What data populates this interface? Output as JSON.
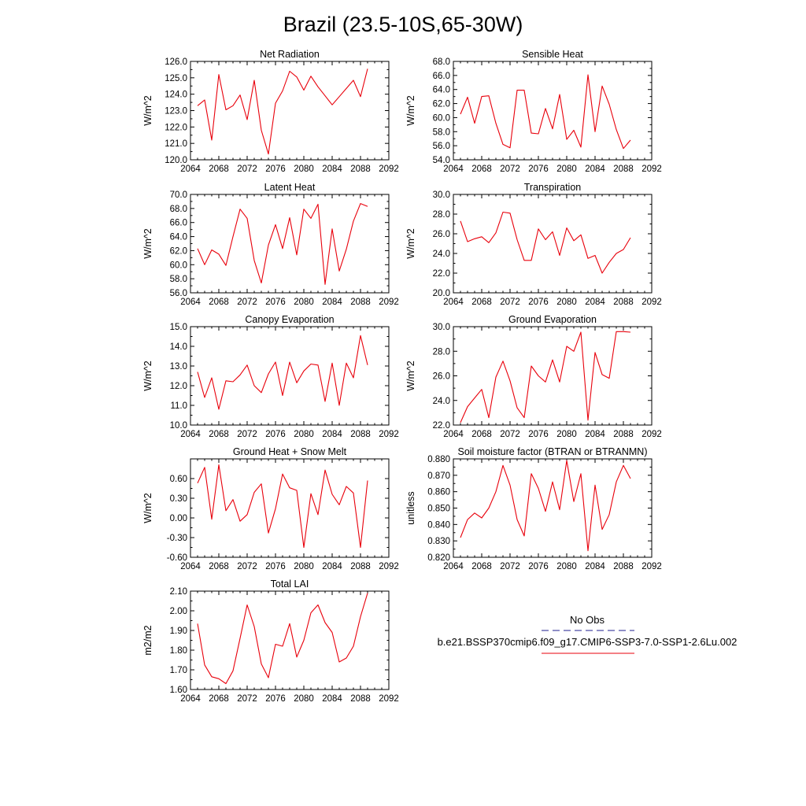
{
  "page": {
    "title": "Brazil (23.5-10S,65-30W)"
  },
  "legend": {
    "entries": [
      {
        "label": "No Obs",
        "color": "#1f1f8f",
        "style": "dashed"
      },
      {
        "label": "b.e21.BSSP370cmip6.f09_g17.CMIP6-SSP3-7.0-SSP1-2.6Lu.002",
        "color": "#e8000b",
        "style": "solid"
      }
    ]
  },
  "colors": {
    "series": "#e8000b",
    "frame": "#000000"
  },
  "chart_data": [
    {
      "type": "line",
      "title": "Net Radiation",
      "ylabel": "W/m^2",
      "xlim": [
        2064,
        2092
      ],
      "ylim": [
        120,
        126
      ],
      "xticks": [
        "2064",
        "2068",
        "2072",
        "2076",
        "2080",
        "2084",
        "2088",
        "2092"
      ],
      "yticks": [
        "120.0",
        "121.0",
        "122.0",
        "123.0",
        "124.0",
        "125.0",
        "126.0"
      ],
      "x": [
        2065,
        2066,
        2067,
        2068,
        2069,
        2070,
        2071,
        2072,
        2073,
        2074,
        2075,
        2076,
        2077,
        2078,
        2079,
        2080,
        2081,
        2082,
        2083,
        2084,
        2085,
        2086,
        2087,
        2088,
        2089
      ],
      "y": [
        123.3,
        123.65,
        121.2,
        125.2,
        123.05,
        123.3,
        123.95,
        122.45,
        124.85,
        121.8,
        120.35,
        123.45,
        124.2,
        125.4,
        125.05,
        124.25,
        125.1,
        124.45,
        123.9,
        123.35,
        123.85,
        124.35,
        124.85,
        123.85,
        125.55
      ]
    },
    {
      "type": "line",
      "title": "Sensible Heat",
      "ylabel": "W/m^2",
      "xlim": [
        2064,
        2092
      ],
      "ylim": [
        54,
        68
      ],
      "xticks": [
        "2064",
        "2068",
        "2072",
        "2076",
        "2080",
        "2084",
        "2088",
        "2092"
      ],
      "yticks": [
        "54.0",
        "56.0",
        "58.0",
        "60.0",
        "62.0",
        "64.0",
        "66.0",
        "68.0"
      ],
      "x": [
        2065,
        2066,
        2067,
        2068,
        2069,
        2070,
        2071,
        2072,
        2073,
        2074,
        2075,
        2076,
        2077,
        2078,
        2079,
        2080,
        2081,
        2082,
        2083,
        2084,
        2085,
        2086,
        2087,
        2088,
        2089
      ],
      "y": [
        60.5,
        62.9,
        59.2,
        63.0,
        63.1,
        59.2,
        56.2,
        55.7,
        63.9,
        63.9,
        57.8,
        57.7,
        61.3,
        58.4,
        63.3,
        56.9,
        58.2,
        55.8,
        66.1,
        58.0,
        64.5,
        61.9,
        58.3,
        55.6,
        56.8
      ]
    },
    {
      "type": "line",
      "title": "Latent Heat",
      "ylabel": "W/m^2",
      "xlim": [
        2064,
        2092
      ],
      "ylim": [
        56,
        70
      ],
      "xticks": [
        "2064",
        "2068",
        "2072",
        "2076",
        "2080",
        "2084",
        "2088",
        "2092"
      ],
      "yticks": [
        "56.0",
        "58.0",
        "60.0",
        "62.0",
        "64.0",
        "66.0",
        "68.0",
        "70.0"
      ],
      "x": [
        2065,
        2066,
        2067,
        2068,
        2069,
        2070,
        2071,
        2072,
        2073,
        2074,
        2075,
        2076,
        2077,
        2078,
        2079,
        2080,
        2081,
        2082,
        2083,
        2084,
        2085,
        2086,
        2087,
        2088,
        2089
      ],
      "y": [
        62.3,
        60.0,
        62.1,
        61.5,
        59.9,
        64.0,
        67.9,
        66.6,
        60.6,
        57.4,
        62.8,
        65.7,
        62.3,
        66.7,
        61.4,
        67.9,
        66.6,
        68.6,
        57.2,
        65.1,
        59.1,
        62.2,
        66.2,
        68.7,
        68.3
      ]
    },
    {
      "type": "line",
      "title": "Transpiration",
      "ylabel": "W/m^2",
      "xlim": [
        2064,
        2092
      ],
      "ylim": [
        20,
        30
      ],
      "xticks": [
        "2064",
        "2068",
        "2072",
        "2076",
        "2080",
        "2084",
        "2088",
        "2092"
      ],
      "yticks": [
        "20.0",
        "22.0",
        "24.0",
        "26.0",
        "28.0",
        "30.0"
      ],
      "x": [
        2065,
        2066,
        2067,
        2068,
        2069,
        2070,
        2071,
        2072,
        2073,
        2074,
        2075,
        2076,
        2077,
        2078,
        2079,
        2080,
        2081,
        2082,
        2083,
        2084,
        2085,
        2086,
        2087,
        2088,
        2089
      ],
      "y": [
        27.3,
        25.2,
        25.5,
        25.7,
        25.1,
        26.1,
        28.2,
        28.1,
        25.4,
        23.3,
        23.3,
        26.5,
        25.4,
        26.2,
        23.8,
        26.6,
        25.3,
        25.9,
        23.5,
        23.8,
        22.0,
        23.1,
        24.0,
        24.4,
        25.6
      ]
    },
    {
      "type": "line",
      "title": "Canopy Evaporation",
      "ylabel": "W/m^2",
      "xlim": [
        2064,
        2092
      ],
      "ylim": [
        10,
        15
      ],
      "xticks": [
        "2064",
        "2068",
        "2072",
        "2076",
        "2080",
        "2084",
        "2088",
        "2092"
      ],
      "yticks": [
        "10.0",
        "11.0",
        "12.0",
        "13.0",
        "14.0",
        "15.0"
      ],
      "x": [
        2065,
        2066,
        2067,
        2068,
        2069,
        2070,
        2071,
        2072,
        2073,
        2074,
        2075,
        2076,
        2077,
        2078,
        2079,
        2080,
        2081,
        2082,
        2083,
        2084,
        2085,
        2086,
        2087,
        2088,
        2089
      ],
      "y": [
        12.7,
        11.4,
        12.4,
        10.8,
        12.25,
        12.2,
        12.55,
        13.05,
        12.0,
        11.65,
        12.6,
        13.2,
        11.5,
        13.2,
        12.15,
        12.75,
        13.1,
        13.05,
        11.2,
        13.15,
        11.0,
        13.15,
        12.4,
        14.55,
        13.05
      ]
    },
    {
      "type": "line",
      "title": "Ground Evaporation",
      "ylabel": "W/m^2",
      "xlim": [
        2064,
        2092
      ],
      "ylim": [
        22,
        30
      ],
      "xticks": [
        "2064",
        "2068",
        "2072",
        "2076",
        "2080",
        "2084",
        "2088",
        "2092"
      ],
      "yticks": [
        "22.0",
        "24.0",
        "26.0",
        "28.0",
        "30.0"
      ],
      "x": [
        2065,
        2066,
        2067,
        2068,
        2069,
        2070,
        2071,
        2072,
        2073,
        2074,
        2075,
        2076,
        2077,
        2078,
        2079,
        2080,
        2081,
        2082,
        2083,
        2084,
        2085,
        2086,
        2087,
        2088,
        2089
      ],
      "y": [
        22.2,
        23.5,
        24.2,
        24.9,
        22.6,
        25.9,
        27.2,
        25.6,
        23.4,
        22.6,
        26.8,
        26.0,
        25.5,
        27.3,
        25.5,
        28.4,
        28.0,
        29.55,
        22.4,
        27.9,
        26.1,
        25.8,
        29.6,
        29.6,
        29.55
      ]
    },
    {
      "type": "line",
      "title": "Ground Heat + Snow Melt",
      "ylabel": "W/m^2",
      "xlim": [
        2064,
        2092
      ],
      "ylim": [
        -0.6,
        0.9
      ],
      "xticks": [
        "2064",
        "2068",
        "2072",
        "2076",
        "2080",
        "2084",
        "2088",
        "2092"
      ],
      "yticks": [
        "-0.60",
        "-0.30",
        "0.00",
        "0.30",
        "0.60"
      ],
      "x": [
        2065,
        2066,
        2067,
        2068,
        2069,
        2070,
        2071,
        2072,
        2073,
        2074,
        2075,
        2076,
        2077,
        2078,
        2079,
        2080,
        2081,
        2082,
        2083,
        2084,
        2085,
        2086,
        2087,
        2088,
        2089
      ],
      "y": [
        0.53,
        0.77,
        -0.02,
        0.81,
        0.11,
        0.28,
        -0.05,
        0.05,
        0.39,
        0.52,
        -0.23,
        0.14,
        0.67,
        0.46,
        0.42,
        -0.45,
        0.37,
        0.05,
        0.73,
        0.36,
        0.2,
        0.48,
        0.38,
        -0.45,
        0.57
      ]
    },
    {
      "type": "line",
      "title": "Soil moisture factor (BTRAN or BTRANMN)",
      "ylabel": "unitless",
      "xlim": [
        2064,
        2092
      ],
      "ylim": [
        0.82,
        0.88
      ],
      "xticks": [
        "2064",
        "2068",
        "2072",
        "2076",
        "2080",
        "2084",
        "2088",
        "2092"
      ],
      "yticks": [
        "0.820",
        "0.830",
        "0.840",
        "0.850",
        "0.860",
        "0.870",
        "0.880"
      ],
      "x": [
        2065,
        2066,
        2067,
        2068,
        2069,
        2070,
        2071,
        2072,
        2073,
        2074,
        2075,
        2076,
        2077,
        2078,
        2079,
        2080,
        2081,
        2082,
        2083,
        2084,
        2085,
        2086,
        2087,
        2088,
        2089
      ],
      "y": [
        0.832,
        0.843,
        0.847,
        0.844,
        0.85,
        0.86,
        0.876,
        0.864,
        0.843,
        0.833,
        0.871,
        0.862,
        0.848,
        0.866,
        0.849,
        0.879,
        0.854,
        0.871,
        0.824,
        0.864,
        0.837,
        0.846,
        0.866,
        0.876,
        0.868
      ]
    },
    {
      "type": "line",
      "title": "Total LAI",
      "ylabel": "m2/m2",
      "xlim": [
        2064,
        2092
      ],
      "ylim": [
        1.6,
        2.1
      ],
      "xticks": [
        "2064",
        "2068",
        "2072",
        "2076",
        "2080",
        "2084",
        "2088",
        "2092"
      ],
      "yticks": [
        "1.60",
        "1.70",
        "1.80",
        "1.90",
        "2.00",
        "2.10"
      ],
      "x": [
        2065,
        2066,
        2067,
        2068,
        2069,
        2070,
        2071,
        2072,
        2073,
        2074,
        2075,
        2076,
        2077,
        2078,
        2079,
        2080,
        2081,
        2082,
        2083,
        2084,
        2085,
        2086,
        2087,
        2088,
        2089
      ],
      "y": [
        1.935,
        1.725,
        1.665,
        1.655,
        1.63,
        1.695,
        1.86,
        2.03,
        1.92,
        1.73,
        1.66,
        1.83,
        1.82,
        1.935,
        1.765,
        1.85,
        1.99,
        2.03,
        1.94,
        1.89,
        1.74,
        1.76,
        1.82,
        1.97,
        2.09
      ]
    }
  ]
}
